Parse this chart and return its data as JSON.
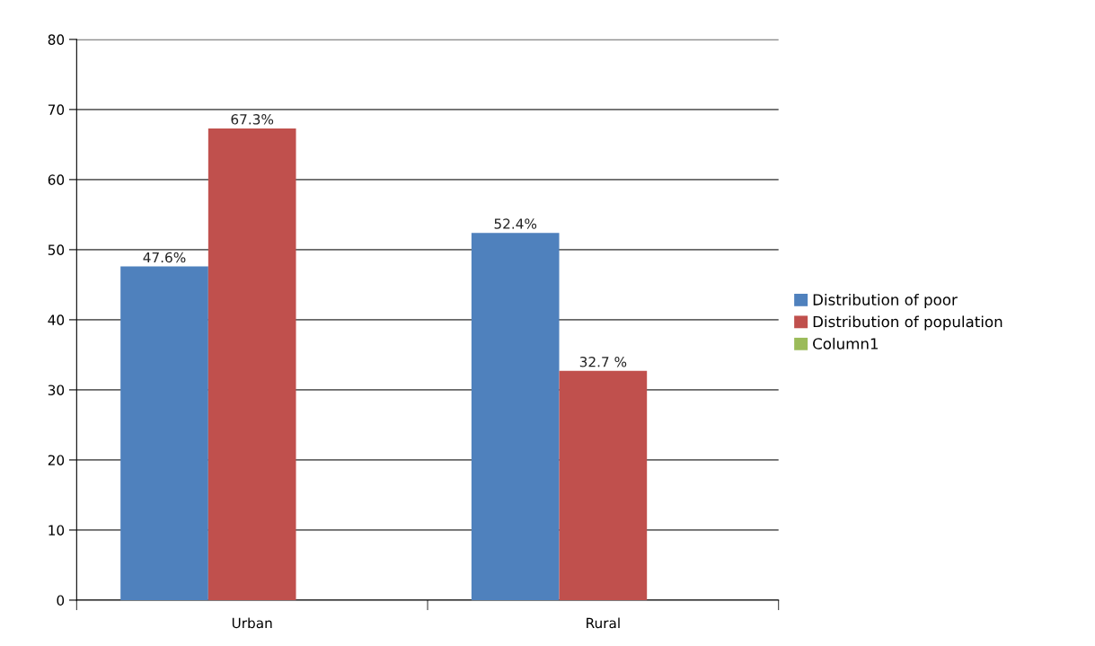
{
  "chart_data": {
    "type": "bar",
    "categories": [
      "Urban",
      "Rural"
    ],
    "series": [
      {
        "name": "Distribution of poor",
        "color": "#4f81bd",
        "values": [
          47.6,
          52.4
        ],
        "value_labels": [
          "47.6%",
          "52.4%"
        ]
      },
      {
        "name": "Distribution of population",
        "color": "#c0504d",
        "values": [
          67.3,
          32.7
        ],
        "value_labels": [
          "67.3%",
          "32.7 %"
        ]
      },
      {
        "name": "Column1",
        "color": "#9bbb59",
        "values": [
          null,
          null
        ]
      }
    ],
    "ylim": [
      0,
      80
    ],
    "yticks": [
      0,
      10,
      20,
      30,
      40,
      50,
      60,
      70,
      80
    ],
    "grid": "y",
    "legend": "right"
  }
}
